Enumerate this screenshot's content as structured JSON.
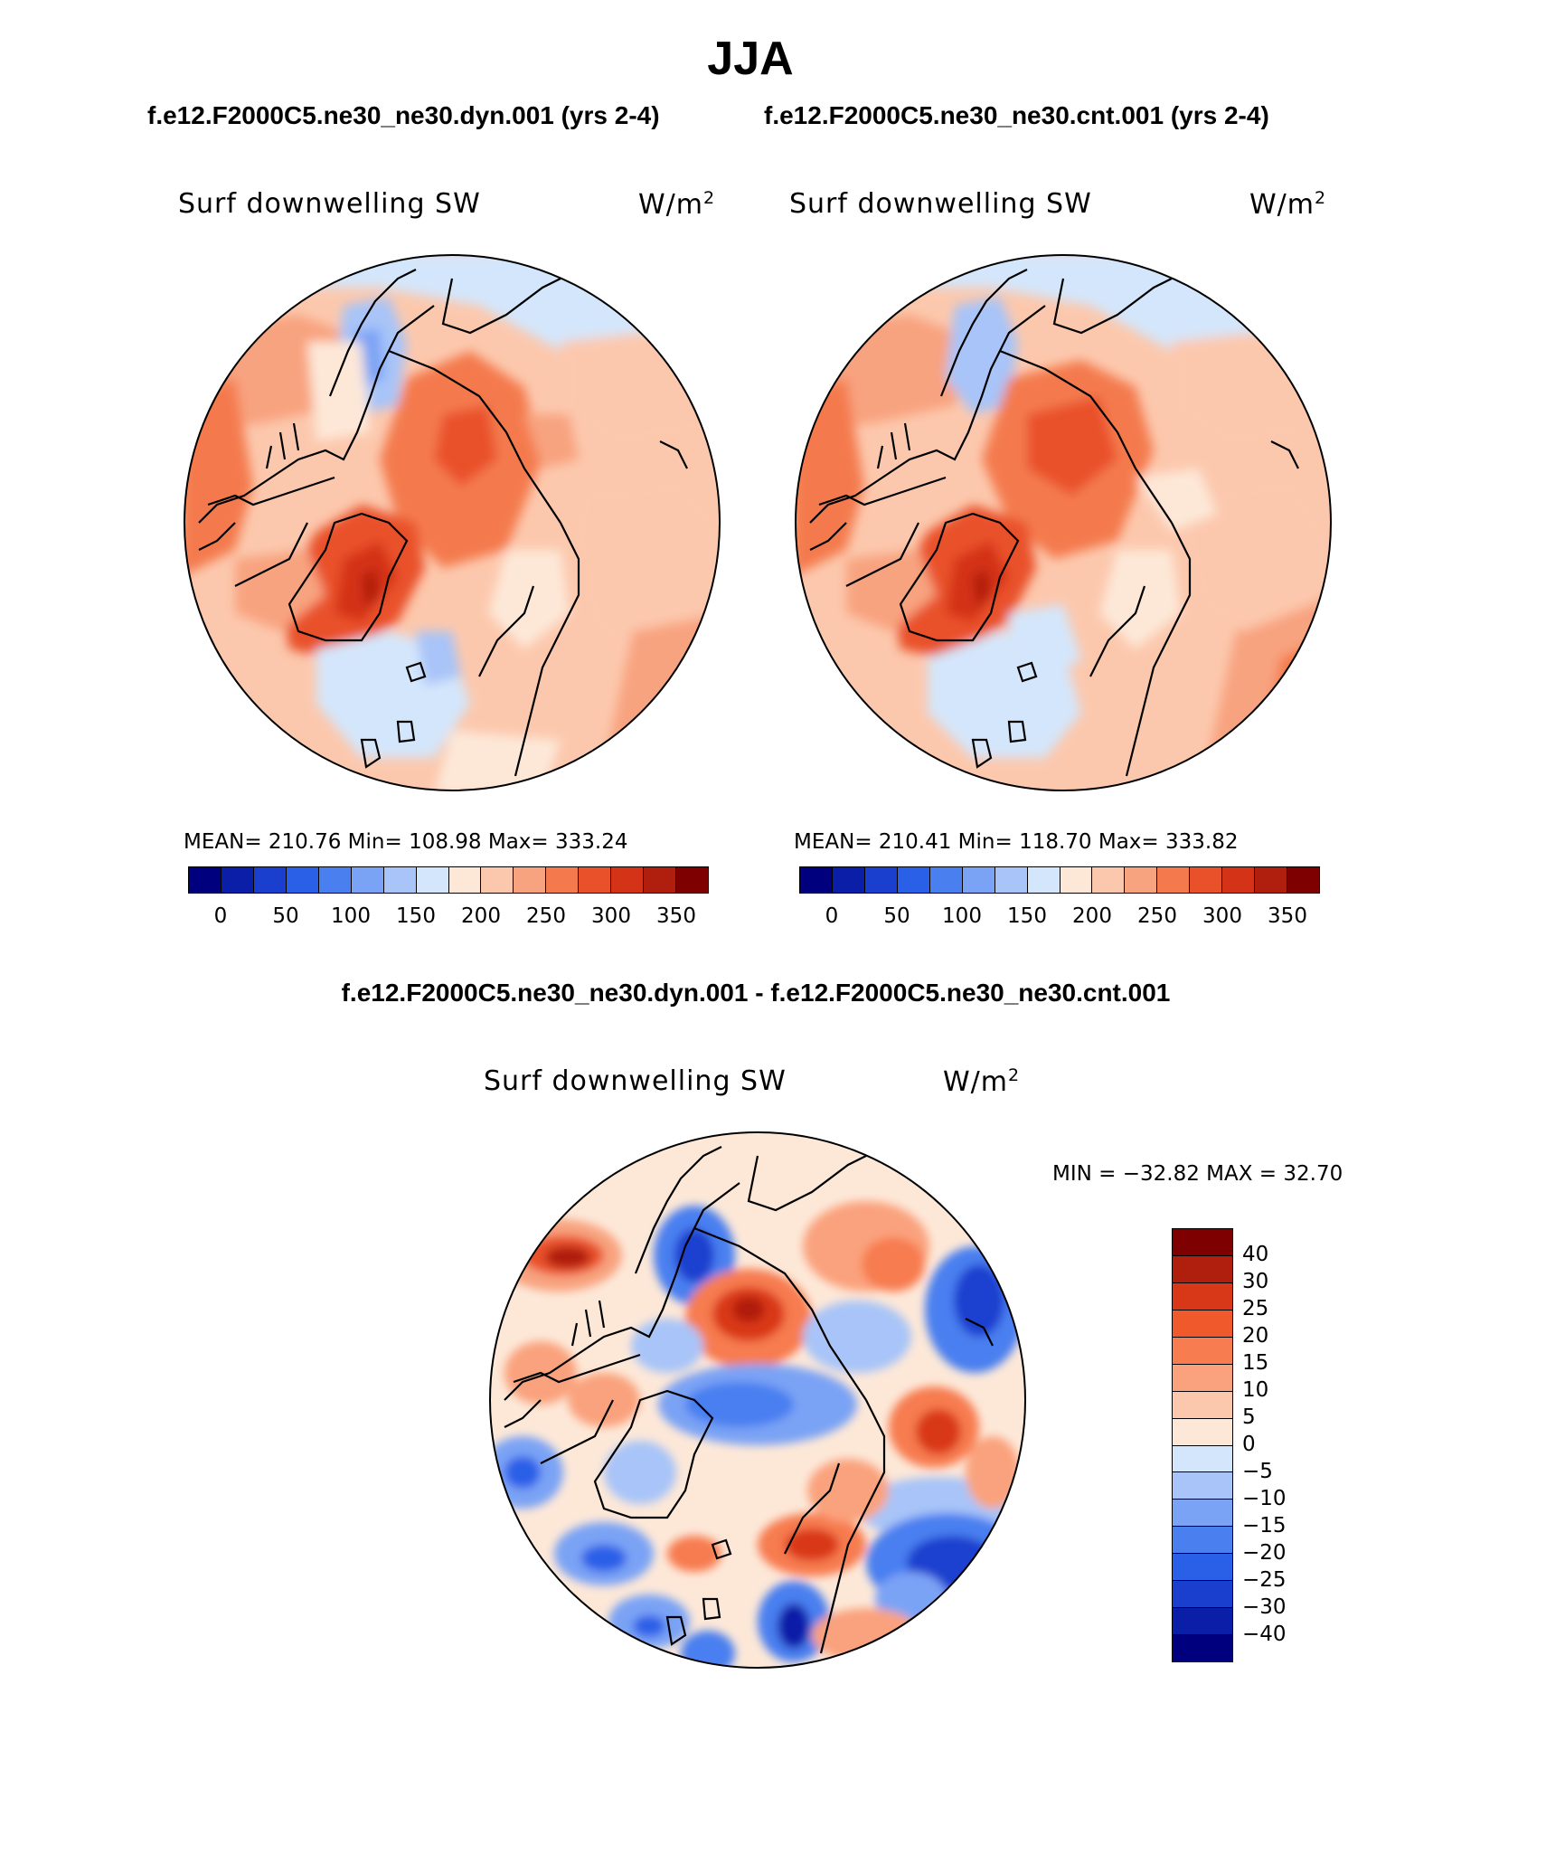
{
  "title": "JJA",
  "subtitle_left": "f.e12.F2000C5.ne30_ne30.dyn.001 (yrs 2-4)",
  "subtitle_right": "f.e12.F2000C5.ne30_ne30.cnt.001 (yrs 2-4)",
  "diff_title": "f.e12.F2000C5.ne30_ne30.dyn.001 - f.e12.F2000C5.ne30_ne30.cnt.001",
  "panels": [
    {
      "variable": "Surf downwelling SW",
      "units": "W/m",
      "units_exp": "2",
      "stats": "MEAN= 210.76   Min= 108.98   Max= 333.24"
    },
    {
      "variable": "Surf downwelling SW",
      "units": "W/m",
      "units_exp": "2",
      "stats": "MEAN= 210.41   Min= 118.70   Max= 333.82"
    },
    {
      "variable": "Surf downwelling SW",
      "units": "W/m",
      "units_exp": "2",
      "stats": "MIN = −32.82 MAX =   32.70"
    }
  ],
  "colorbar_abs": {
    "ticks": [
      "0",
      "50",
      "100",
      "150",
      "200",
      "250",
      "300",
      "350"
    ],
    "colors": [
      "#00007f",
      "#0a1ea8",
      "#1a3fcf",
      "#2a5fe8",
      "#4a7ff0",
      "#7aa3f5",
      "#a8c4f8",
      "#d4e6fb",
      "#fde8d8",
      "#fcc8ad",
      "#f8a37f",
      "#f47a4e",
      "#e9512a",
      "#d43318",
      "#b01e0d",
      "#7f0000"
    ]
  },
  "colorbar_diff": {
    "ticks": [
      "40",
      "30",
      "25",
      "20",
      "15",
      "10",
      "5",
      "0",
      "−5",
      "−10",
      "−15",
      "−20",
      "−25",
      "−30",
      "−40"
    ],
    "colors": [
      "#7f0000",
      "#b01e0d",
      "#d93818",
      "#f0592b",
      "#f77c4f",
      "#faa27d",
      "#fcc8ad",
      "#fde8d8",
      "#d4e6fb",
      "#a8c4f8",
      "#7aa3f5",
      "#4a7ff0",
      "#2a5fe8",
      "#1a3fcf",
      "#0a1ea8",
      "#00007f"
    ]
  }
}
